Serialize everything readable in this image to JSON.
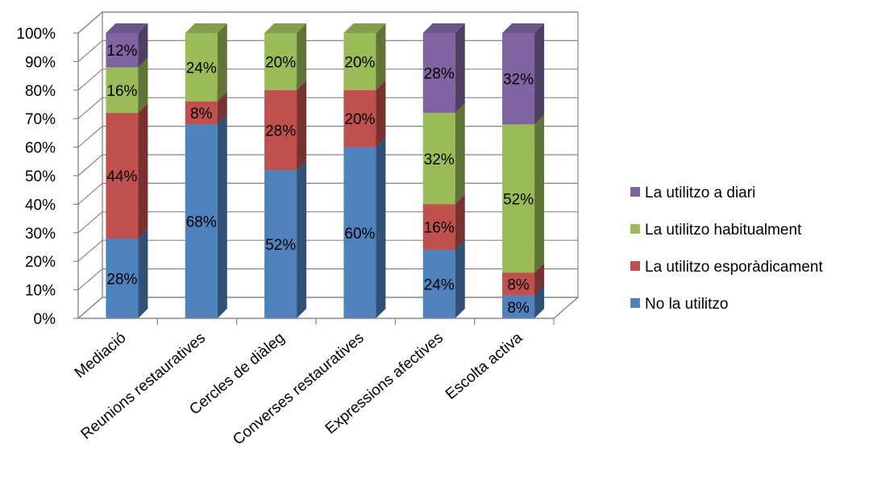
{
  "chart_data": {
    "type": "bar",
    "stacked": true,
    "three_d": true,
    "categories": [
      "Mediació",
      "Reunions restauratives",
      "Cercles de diàleg",
      "Converses restauratives",
      "Expressions afectives",
      "Escolta activa"
    ],
    "series": [
      {
        "name": "No la utilitzo",
        "values": [
          28,
          68,
          52,
          60,
          24,
          8
        ],
        "labels": [
          "28%",
          "68%",
          "52%",
          "60%",
          "24%",
          "8%"
        ],
        "color": "#4F81BD"
      },
      {
        "name": "La utilitzo esporàdicament",
        "values": [
          44,
          8,
          28,
          20,
          16,
          8
        ],
        "labels": [
          "44%",
          "8%",
          "28%",
          "20%",
          "16%",
          "8%"
        ],
        "color": "#C0504D"
      },
      {
        "name": "La utilitzo habitualment",
        "values": [
          16,
          24,
          20,
          20,
          32,
          52
        ],
        "labels": [
          "16%",
          "24%",
          "20%",
          "20%",
          "32%",
          "52%"
        ],
        "color": "#9BBB59"
      },
      {
        "name": "La utilitzo a diari",
        "values": [
          12,
          0,
          0,
          0,
          28,
          32
        ],
        "labels": [
          "12%",
          "",
          "",
          "",
          "28%",
          "32%"
        ],
        "color": "#8064A2"
      }
    ],
    "ylim": [
      0,
      100
    ],
    "yticks": [
      "0%",
      "10%",
      "20%",
      "30%",
      "40%",
      "50%",
      "60%",
      "70%",
      "80%",
      "90%",
      "100%"
    ],
    "grid": true,
    "legend_position": "right",
    "legend_order": [
      "La utilitzo a diari",
      "La utilitzo habitualment",
      "La utilitzo esporàdicament",
      "No la utilitzo"
    ],
    "title": "",
    "xlabel": "",
    "ylabel": ""
  }
}
